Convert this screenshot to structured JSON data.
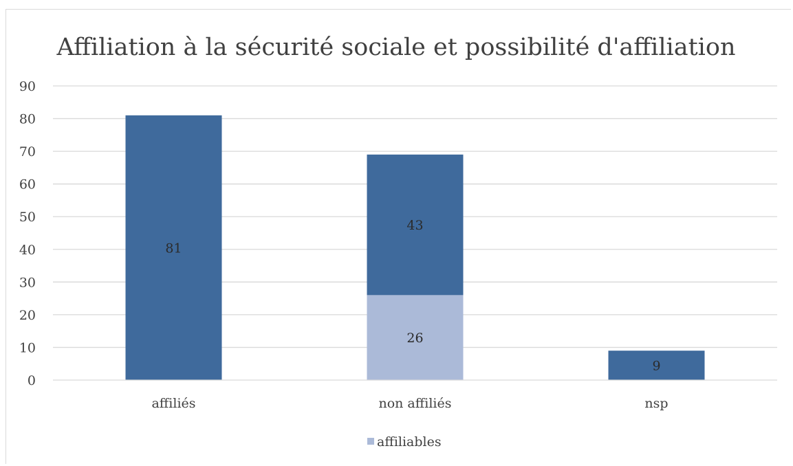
{
  "chart_data": {
    "type": "bar",
    "stacked": true,
    "title": "Affiliation à la sécurité  sociale et possibilité d'affiliation",
    "xlabel": "",
    "ylabel": "",
    "ylim": [
      0,
      90
    ],
    "yticks": [
      0,
      10,
      20,
      30,
      40,
      50,
      60,
      70,
      80,
      90
    ],
    "grid": true,
    "legend_position": "bottom",
    "categories": [
      "affiliés",
      "non affiliés",
      "nsp"
    ],
    "series": [
      {
        "name": "affiliables",
        "color": "#abbad8",
        "values": [
          0,
          26,
          0
        ],
        "in_legend": true
      },
      {
        "name": "",
        "color": "#3f6a9c",
        "values": [
          81,
          43,
          9
        ],
        "in_legend": false
      }
    ],
    "data_labels": [
      {
        "category": "affiliés",
        "series": 1,
        "text": "81"
      },
      {
        "category": "non affiliés",
        "series": 1,
        "text": "43"
      },
      {
        "category": "non affiliés",
        "series": 0,
        "text": "26"
      },
      {
        "category": "nsp",
        "series": 1,
        "text": "9"
      }
    ]
  }
}
